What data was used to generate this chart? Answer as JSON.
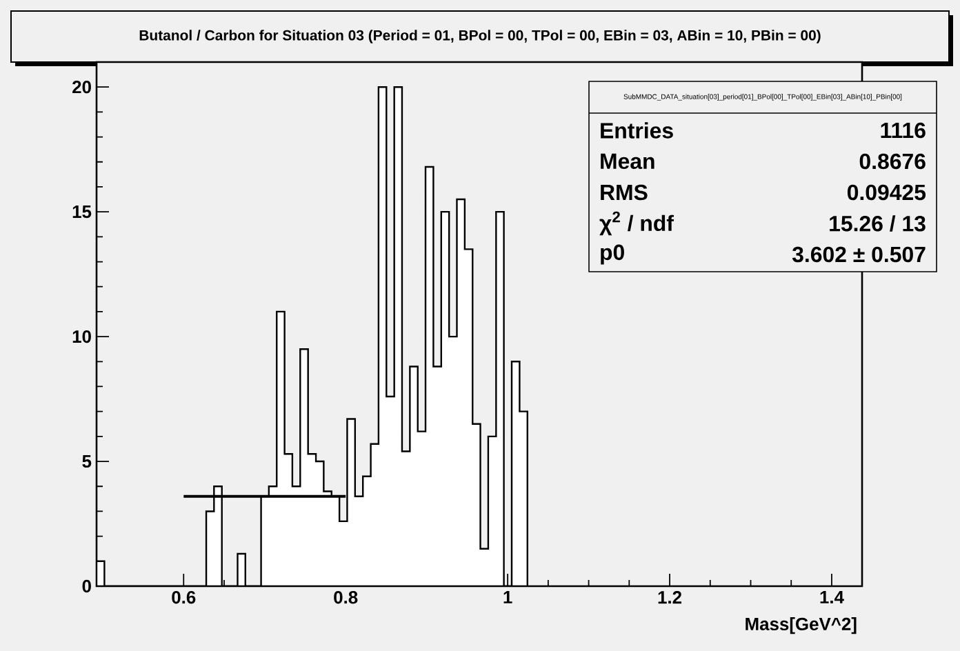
{
  "chart_data": {
    "type": "histogram",
    "title": "Butanol / Carbon for Situation 03 (Period = 01, BPol = 00, TPol = 00, EBin = 03, ABin = 10, PBin = 00)",
    "xlabel": "Mass[GeV^2]",
    "bins": [
      0.4925,
      0.5022,
      0.5118,
      0.5215,
      0.5312,
      0.5409,
      0.5505,
      0.5602,
      0.5699,
      0.5795,
      0.5892,
      0.5989,
      0.6085,
      0.6182,
      0.6279,
      0.6375,
      0.6472,
      0.6569,
      0.6666,
      0.6762,
      0.6859,
      0.6956,
      0.7052,
      0.7149,
      0.7246,
      0.7342,
      0.7439,
      0.7536,
      0.7633,
      0.7729,
      0.7826,
      0.7923,
      0.8019,
      0.8116,
      0.8213,
      0.831,
      0.8406,
      0.8503,
      0.86,
      0.8696,
      0.8793,
      0.889,
      0.8986,
      0.9083,
      0.918,
      0.9277,
      0.9373,
      0.947,
      0.9567,
      0.9663,
      0.976,
      0.9857,
      0.9953,
      1.005,
      1.0147,
      1.0244
    ],
    "series": [
      {
        "color": "#ffffff",
        "values": [
          1.0,
          0,
          0,
          0,
          0,
          0,
          0,
          0,
          0,
          0,
          0,
          0,
          0,
          0,
          3.0,
          4.0,
          0,
          0,
          1.3,
          0,
          0,
          3.6,
          4.0,
          11.0,
          5.3,
          4.0,
          9.5,
          5.3,
          5.0,
          3.8,
          3.6,
          2.6,
          6.7,
          3.6,
          4.4,
          5.7,
          20.0,
          7.6,
          20.0,
          5.4,
          8.8,
          6.2,
          16.8,
          8.8,
          15.0,
          10.0,
          15.5,
          13.5,
          6.5,
          1.5,
          6.0,
          15.0,
          0,
          9.0,
          7.0
        ]
      },
      {
        "type": "line",
        "color": "#000000",
        "x": [
          0.6,
          0.8
        ],
        "values": [
          3.602,
          3.602
        ]
      }
    ],
    "xlim": [
      0.4925,
      1.4375
    ],
    "ylim": [
      0,
      21
    ],
    "xticks": [
      0.6,
      0.8,
      1,
      1.2,
      1.4
    ],
    "yticks": [
      0,
      5,
      10,
      15,
      20
    ],
    "annotations": [
      "SubMMDC_DATA_situation[03]_period[01]_BPol[00]_TPol[00]_EBin[03]_ABin[10]_PBin[00]",
      "Entries",
      "1116",
      "Mean",
      "0.8676",
      "RMS",
      "0.09425",
      "χ$^{2}$ / ndf",
      "15.26 / 13",
      "p0",
      "3.602 ± 0.507"
    ]
  }
}
